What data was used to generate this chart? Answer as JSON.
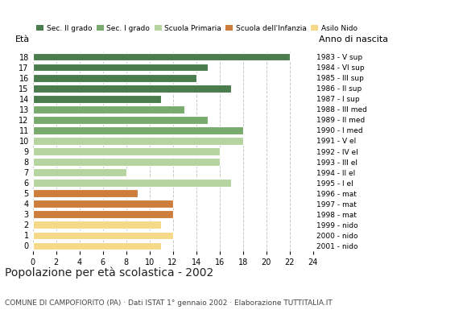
{
  "ages": [
    18,
    17,
    16,
    15,
    14,
    13,
    12,
    11,
    10,
    9,
    8,
    7,
    6,
    5,
    4,
    3,
    2,
    1,
    0
  ],
  "values": [
    22,
    15,
    14,
    17,
    11,
    13,
    15,
    18,
    18,
    16,
    16,
    8,
    17,
    9,
    12,
    12,
    11,
    12,
    11
  ],
  "years": [
    "1983 - V sup",
    "1984 - VI sup",
    "1985 - III sup",
    "1986 - II sup",
    "1987 - I sup",
    "1988 - III med",
    "1989 - II med",
    "1990 - I med",
    "1991 - V el",
    "1992 - IV el",
    "1993 - III el",
    "1994 - II el",
    "1995 - I el",
    "1996 - mat",
    "1997 - mat",
    "1998 - mat",
    "1999 - nido",
    "2000 - nido",
    "2001 - nido"
  ],
  "colors": [
    "#4a7c4e",
    "#4a7c4e",
    "#4a7c4e",
    "#4a7c4e",
    "#4a7c4e",
    "#7aab6e",
    "#7aab6e",
    "#7aab6e",
    "#b5d4a0",
    "#b5d4a0",
    "#b5d4a0",
    "#b5d4a0",
    "#b5d4a0",
    "#cd7d3c",
    "#cd7d3c",
    "#cd7d3c",
    "#f5d988",
    "#f5d988",
    "#f5d988"
  ],
  "legend_labels": [
    "Sec. II grado",
    "Sec. I grado",
    "Scuola Primaria",
    "Scuola dell'Infanzia",
    "Asilo Nido"
  ],
  "legend_colors": [
    "#4a7c4e",
    "#7aab6e",
    "#b5d4a0",
    "#cd7d3c",
    "#f5d988"
  ],
  "title": "Popolazione per età scolastica - 2002",
  "subtitle": "COMUNE DI CAMPOFIORITO (PA) · Dati ISTAT 1° gennaio 2002 · Elaborazione TUTTITALIA.IT",
  "xlabel_left": "Età",
  "xlabel_right": "Anno di nascita",
  "xlim": [
    0,
    24
  ],
  "xticks": [
    0,
    2,
    4,
    6,
    8,
    10,
    12,
    14,
    16,
    18,
    20,
    22,
    24
  ],
  "bar_height": 0.75,
  "background_color": "#ffffff",
  "grid_color": "#c8c8c8"
}
